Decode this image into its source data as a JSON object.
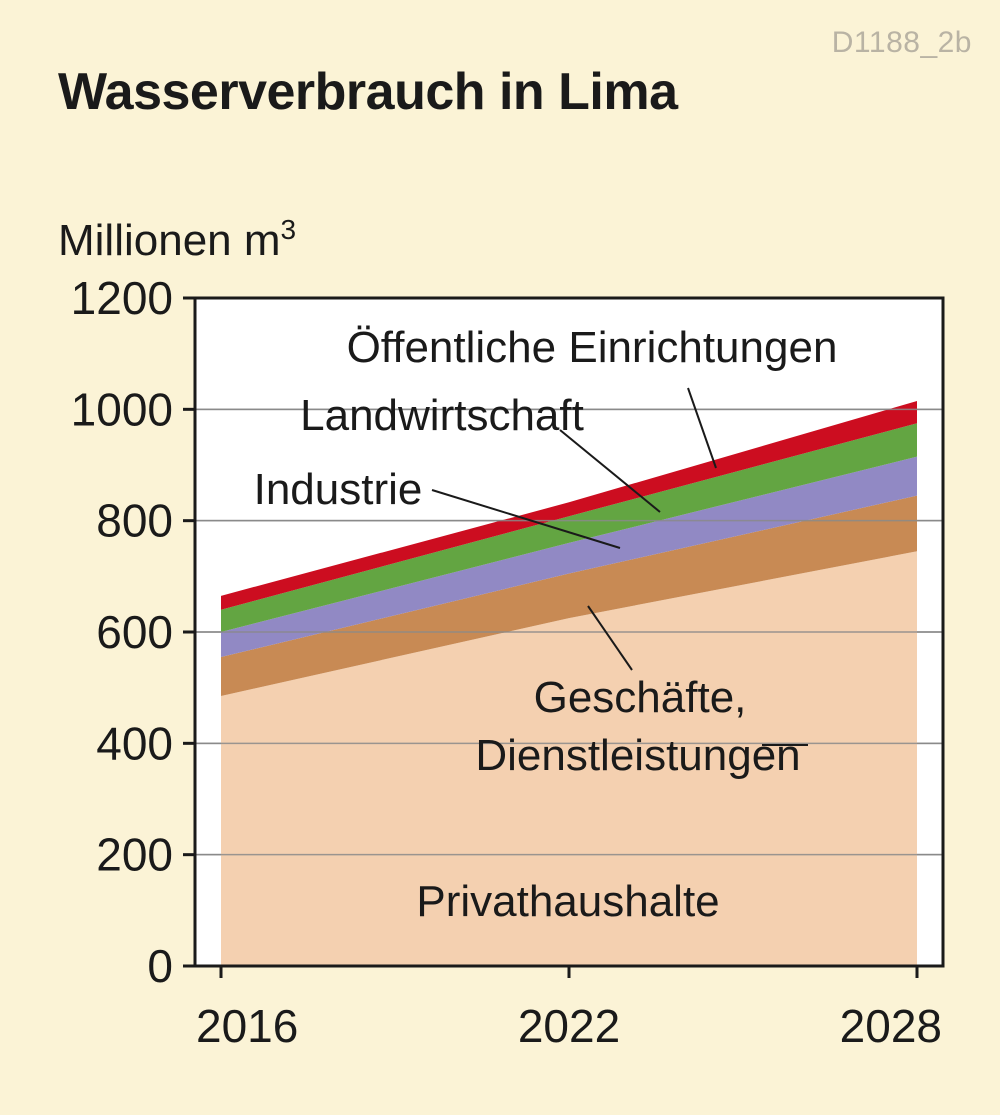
{
  "header": {
    "code": "D1188_2b",
    "title": "Wasserverbrauch in Lima"
  },
  "colors": {
    "background": "#fbf3d6",
    "plot_background": "#ffffff",
    "privathaushalte": "#f4d0b0",
    "geschaefte": "#c88a54",
    "industrie": "#9189c4",
    "landwirtschaft": "#63a542",
    "oeffentliche": "#cc0d20",
    "gridline": "#8a8a8a",
    "axis": "#1a1a1a"
  },
  "chart_data": {
    "type": "area",
    "stacked": true,
    "title": "Wasserverbrauch in Lima",
    "ylabel": "Millionen m",
    "ylabel_sup": "3",
    "ylim": [
      0,
      1200
    ],
    "yticks": [
      "0",
      "200",
      "400",
      "600",
      "800",
      "1000",
      "1200"
    ],
    "xticks": [
      "2016",
      "2022",
      "2028"
    ],
    "x": [
      2016,
      2022,
      2028
    ],
    "grid": true,
    "series": [
      {
        "name": "Privathaushalte",
        "values": [
          485,
          625,
          745
        ],
        "color_key": "privathaushalte"
      },
      {
        "name": "Geschäfte, Dienstleistungen",
        "label_lines": [
          "Geschäfte,",
          "Dienstleistungen"
        ],
        "values": [
          70,
          80,
          100
        ],
        "color_key": "geschaefte"
      },
      {
        "name": "Industrie",
        "values": [
          45,
          55,
          70
        ],
        "color_key": "industrie"
      },
      {
        "name": "Landwirtschaft",
        "values": [
          40,
          48,
          60
        ],
        "color_key": "landwirtschaft"
      },
      {
        "name": "Öffentliche Einrichtungen",
        "values": [
          25,
          25,
          40
        ],
        "color_key": "oeffentliche"
      }
    ]
  }
}
